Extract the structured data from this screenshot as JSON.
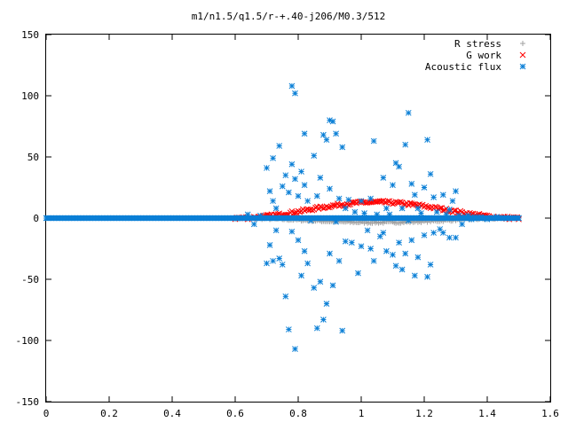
{
  "chart_data": {
    "type": "scatter",
    "title": "m1/n1.5/q1.5/r-+.40-j206/M0.3/512",
    "xlabel": "",
    "ylabel": "",
    "xlim": [
      0,
      1.6
    ],
    "ylim": [
      -150,
      150
    ],
    "xticks": [
      0,
      0.2,
      0.4,
      0.6,
      0.8,
      1,
      1.2,
      1.4,
      1.6
    ],
    "xtick_labels": [
      "0",
      "0.2",
      "0.4",
      "0.6",
      "0.8",
      "1",
      "1.2",
      "1.4",
      "1.6"
    ],
    "yticks": [
      -150,
      -100,
      -50,
      0,
      50,
      100,
      150
    ],
    "ytick_labels": [
      "-150",
      "-100",
      "-50",
      "0",
      "50",
      "100",
      "150"
    ],
    "grid": false,
    "legend_position": "top-right",
    "series": [
      {
        "name": "R stress",
        "marker": "plus",
        "color": "#a0a0a0",
        "x_range": [
          0.6,
          1.5
        ],
        "step": 0.005,
        "shape": "dip",
        "amplitude": -3.5,
        "noise": 0.8
      },
      {
        "name": "G work",
        "marker": "x",
        "color": "#ff0000",
        "x_range": [
          0.6,
          1.5
        ],
        "step": 0.005,
        "shape": "hump",
        "amplitude": 13,
        "noise": 1.2
      },
      {
        "name": "Acoustic flux",
        "marker": "star",
        "color": "#0a7fd6",
        "baseline_x_range": [
          0,
          1.5
        ],
        "baseline_step": 0.004,
        "points": [
          [
            0.64,
            3
          ],
          [
            0.66,
            -5
          ],
          [
            0.68,
            2
          ],
          [
            0.7,
            41
          ],
          [
            0.7,
            -37
          ],
          [
            0.71,
            22
          ],
          [
            0.71,
            -22
          ],
          [
            0.72,
            49
          ],
          [
            0.72,
            14
          ],
          [
            0.72,
            -35
          ],
          [
            0.73,
            8
          ],
          [
            0.73,
            -10
          ],
          [
            0.74,
            59
          ],
          [
            0.74,
            -33
          ],
          [
            0.75,
            26
          ],
          [
            0.75,
            -38
          ],
          [
            0.76,
            35
          ],
          [
            0.76,
            -64
          ],
          [
            0.77,
            21
          ],
          [
            0.77,
            -91
          ],
          [
            0.78,
            108
          ],
          [
            0.78,
            44
          ],
          [
            0.78,
            -11
          ],
          [
            0.79,
            102
          ],
          [
            0.79,
            32
          ],
          [
            0.79,
            -107
          ],
          [
            0.8,
            18
          ],
          [
            0.8,
            -18
          ],
          [
            0.81,
            38
          ],
          [
            0.81,
            -47
          ],
          [
            0.82,
            69
          ],
          [
            0.82,
            27
          ],
          [
            0.82,
            -27
          ],
          [
            0.83,
            14
          ],
          [
            0.83,
            -37
          ],
          [
            0.84,
            -2
          ],
          [
            0.85,
            51
          ],
          [
            0.85,
            -57
          ],
          [
            0.86,
            18
          ],
          [
            0.86,
            -90
          ],
          [
            0.87,
            33
          ],
          [
            0.87,
            -52
          ],
          [
            0.88,
            68
          ],
          [
            0.88,
            -83
          ],
          [
            0.89,
            64
          ],
          [
            0.89,
            -70
          ],
          [
            0.9,
            80
          ],
          [
            0.9,
            24
          ],
          [
            0.9,
            -29
          ],
          [
            0.91,
            79
          ],
          [
            0.91,
            -55
          ],
          [
            0.92,
            69
          ],
          [
            0.92,
            -3
          ],
          [
            0.93,
            16
          ],
          [
            0.93,
            -35
          ],
          [
            0.94,
            58
          ],
          [
            0.94,
            -92
          ],
          [
            0.95,
            8
          ],
          [
            0.95,
            -19
          ],
          [
            0.96,
            15
          ],
          [
            0.97,
            -20
          ],
          [
            0.98,
            5
          ],
          [
            0.99,
            -45
          ],
          [
            1.0,
            14
          ],
          [
            1.0,
            -23
          ],
          [
            1.01,
            4
          ],
          [
            1.02,
            -10
          ],
          [
            1.03,
            16
          ],
          [
            1.03,
            -25
          ],
          [
            1.04,
            63
          ],
          [
            1.04,
            -35
          ],
          [
            1.05,
            3
          ],
          [
            1.06,
            -15
          ],
          [
            1.07,
            33
          ],
          [
            1.07,
            -12
          ],
          [
            1.08,
            8
          ],
          [
            1.08,
            -27
          ],
          [
            1.09,
            3
          ],
          [
            1.1,
            27
          ],
          [
            1.1,
            -30
          ],
          [
            1.11,
            45
          ],
          [
            1.11,
            -39
          ],
          [
            1.12,
            42
          ],
          [
            1.12,
            -20
          ],
          [
            1.13,
            8
          ],
          [
            1.13,
            -42
          ],
          [
            1.14,
            60
          ],
          [
            1.14,
            -29
          ],
          [
            1.15,
            86
          ],
          [
            1.15,
            -2
          ],
          [
            1.16,
            28
          ],
          [
            1.16,
            -18
          ],
          [
            1.17,
            19
          ],
          [
            1.17,
            -47
          ],
          [
            1.18,
            8
          ],
          [
            1.18,
            -32
          ],
          [
            1.19,
            4
          ],
          [
            1.2,
            -14
          ],
          [
            1.2,
            25
          ],
          [
            1.21,
            64
          ],
          [
            1.21,
            -48
          ],
          [
            1.22,
            36
          ],
          [
            1.22,
            -38
          ],
          [
            1.23,
            17
          ],
          [
            1.23,
            -12
          ],
          [
            1.24,
            5
          ],
          [
            1.25,
            -9
          ],
          [
            1.26,
            19
          ],
          [
            1.26,
            -12
          ],
          [
            1.27,
            3
          ],
          [
            1.28,
            7
          ],
          [
            1.28,
            -16
          ],
          [
            1.29,
            14
          ],
          [
            1.3,
            22
          ],
          [
            1.3,
            -16
          ],
          [
            1.31,
            2
          ],
          [
            1.32,
            -5
          ],
          [
            1.33,
            1
          ],
          [
            1.34,
            2
          ],
          [
            1.35,
            -1
          ],
          [
            1.36,
            1
          ],
          [
            1.38,
            1
          ],
          [
            1.4,
            -1
          ],
          [
            1.43,
            1
          ],
          [
            1.46,
            0
          ],
          [
            1.5,
            0
          ]
        ]
      }
    ]
  }
}
